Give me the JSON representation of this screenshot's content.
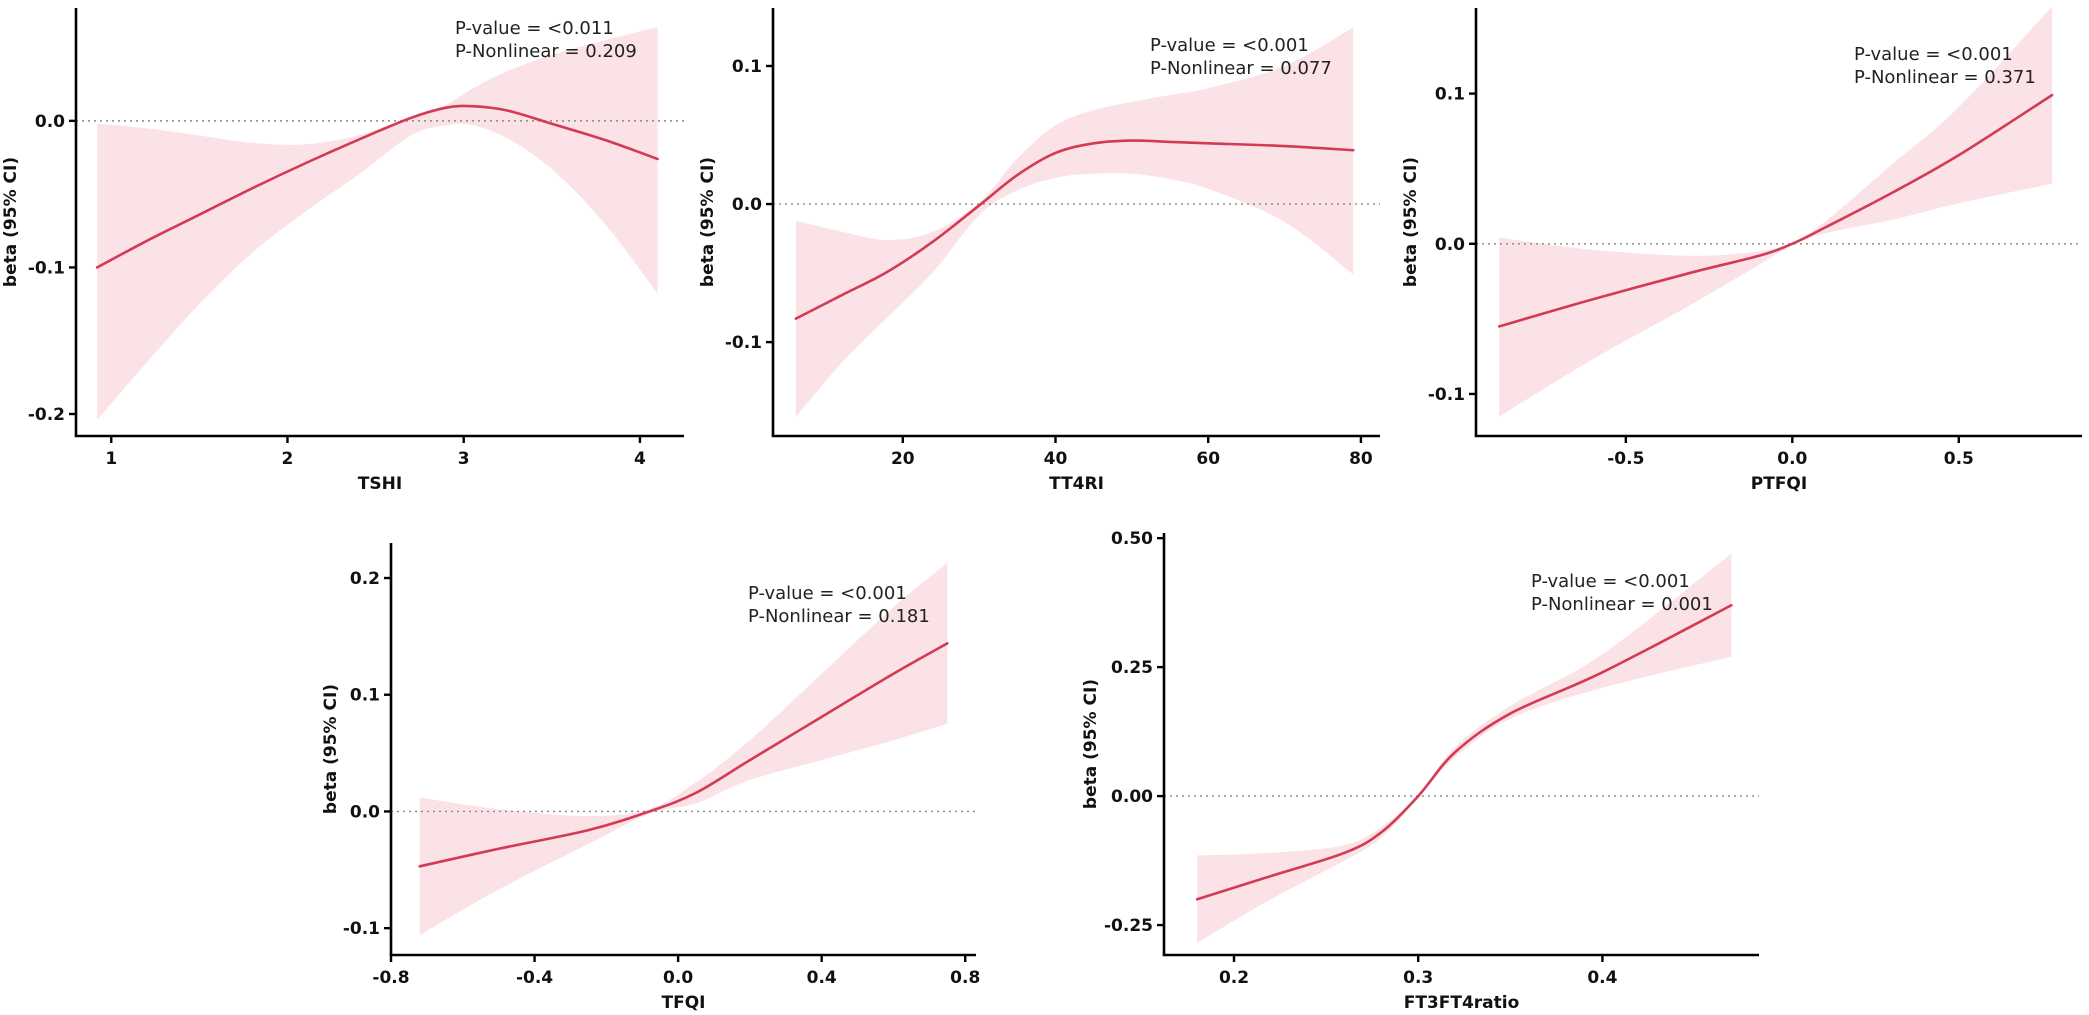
{
  "colors": {
    "line": "#d33a54",
    "band": "#fbe2e7",
    "axis": "#000000",
    "reference": "#888888"
  },
  "chart_data": [
    {
      "type": "line",
      "xlabel": "TSHI",
      "ylabel": "beta (95% CI)",
      "xlim": [
        0.8,
        4.25
      ],
      "ylim": [
        -0.215,
        0.077
      ],
      "xticks": [
        1,
        2,
        3,
        4
      ],
      "xtick_labels": [
        "1",
        "2",
        "3",
        "4"
      ],
      "yticks": [
        -0.2,
        -0.1,
        0.0
      ],
      "ytick_labels": [
        "-0.2",
        "-0.1",
        "0.0"
      ],
      "reference_y": 0,
      "annotations": [
        "P-value = <0.011",
        "P-Nonlinear = 0.209"
      ],
      "series": [
        {
          "name": "beta",
          "x": [
            0.92,
            1.2,
            1.5,
            1.8,
            2.1,
            2.4,
            2.7,
            2.9,
            3.05,
            3.25,
            3.5,
            3.8,
            4.1
          ],
          "y": [
            -0.1,
            -0.082,
            -0.064,
            -0.046,
            -0.029,
            -0.013,
            0.002,
            0.009,
            0.01,
            0.007,
            -0.002,
            -0.013,
            -0.026
          ],
          "lower": [
            -0.204,
            -0.165,
            -0.125,
            -0.09,
            -0.062,
            -0.037,
            -0.01,
            -0.003,
            -0.003,
            -0.012,
            -0.033,
            -0.07,
            -0.118
          ],
          "upper": [
            -0.002,
            -0.005,
            -0.01,
            -0.015,
            -0.016,
            -0.01,
            0.003,
            0.011,
            0.022,
            0.034,
            0.045,
            0.055,
            0.064
          ]
        }
      ]
    },
    {
      "type": "line",
      "xlabel": "TT4RI",
      "ylabel": "beta (95% CI)",
      "xlim": [
        3,
        82.5
      ],
      "ylim": [
        -0.168,
        0.142
      ],
      "xticks": [
        20,
        40,
        60,
        80
      ],
      "xtick_labels": [
        "20",
        "40",
        "60",
        "80"
      ],
      "yticks": [
        -0.1,
        0.0,
        0.1
      ],
      "ytick_labels": [
        "-0.1",
        "0.0",
        "0.1"
      ],
      "reference_y": 0,
      "annotations": [
        "P-value = <0.001",
        "P-Nonlinear = 0.077"
      ],
      "series": [
        {
          "name": "beta",
          "x": [
            6,
            12,
            18,
            24,
            30,
            35,
            40,
            45,
            50,
            55,
            60,
            70,
            79
          ],
          "y": [
            -0.083,
            -0.066,
            -0.049,
            -0.027,
            -0.001,
            0.021,
            0.037,
            0.044,
            0.046,
            0.045,
            0.044,
            0.042,
            0.039
          ],
          "lower": [
            -0.154,
            -0.115,
            -0.082,
            -0.049,
            -0.008,
            0.01,
            0.019,
            0.022,
            0.022,
            0.018,
            0.011,
            -0.013,
            -0.051
          ],
          "upper": [
            -0.012,
            -0.02,
            -0.026,
            -0.02,
            0.001,
            0.033,
            0.057,
            0.068,
            0.074,
            0.079,
            0.084,
            0.1,
            0.128
          ]
        }
      ]
    },
    {
      "type": "line",
      "xlabel": "PTFQI",
      "ylabel": "beta (95% CI)",
      "xlim": [
        -0.95,
        0.87
      ],
      "ylim": [
        -0.128,
        0.157
      ],
      "xticks": [
        -0.5,
        0.0,
        0.5
      ],
      "xtick_labels": [
        "-0.5",
        "0.0",
        "0.5"
      ],
      "yticks": [
        -0.1,
        0.0,
        0.1
      ],
      "ytick_labels": [
        "-0.1",
        "0.0",
        "0.1"
      ],
      "reference_y": 0,
      "annotations": [
        "P-value = <0.001",
        "P-Nonlinear = 0.371"
      ],
      "series": [
        {
          "name": "beta",
          "x": [
            -0.88,
            -0.6,
            -0.3,
            -0.1,
            0.0,
            0.1,
            0.3,
            0.5,
            0.78
          ],
          "y": [
            -0.055,
            -0.037,
            -0.019,
            -0.008,
            0.0,
            0.011,
            0.034,
            0.059,
            0.099
          ],
          "lower": [
            -0.115,
            -0.077,
            -0.04,
            -0.014,
            -0.001,
            0.007,
            0.016,
            0.027,
            0.04
          ],
          "upper": [
            0.004,
            -0.004,
            -0.008,
            -0.005,
            0.001,
            0.015,
            0.053,
            0.091,
            0.158
          ]
        }
      ]
    },
    {
      "type": "line",
      "xlabel": "TFQI",
      "ylabel": "beta (95% CI)",
      "xlim": [
        -0.8,
        0.83
      ],
      "ylim": [
        -0.123,
        0.23
      ],
      "xticks": [
        -0.8,
        -0.4,
        0.0,
        0.4,
        0.8
      ],
      "xtick_labels": [
        "-0.8",
        "-0.4",
        "0.0",
        "0.4",
        "0.8"
      ],
      "yticks": [
        -0.1,
        0.0,
        0.1,
        0.2
      ],
      "ytick_labels": [
        "-0.1",
        "0.0",
        "0.1",
        "0.2"
      ],
      "reference_y": 0,
      "annotations": [
        "P-value = <0.001",
        "P-Nonlinear = 0.181"
      ],
      "series": [
        {
          "name": "beta",
          "x": [
            -0.72,
            -0.5,
            -0.25,
            -0.08,
            0.05,
            0.2,
            0.4,
            0.6,
            0.75
          ],
          "y": [
            -0.047,
            -0.032,
            -0.016,
            0.0,
            0.016,
            0.044,
            0.081,
            0.118,
            0.144
          ],
          "lower": [
            -0.106,
            -0.067,
            -0.028,
            -0.002,
            0.007,
            0.027,
            0.044,
            0.061,
            0.075
          ],
          "upper": [
            0.012,
            0.002,
            -0.004,
            0.002,
            0.025,
            0.061,
            0.118,
            0.175,
            0.213
          ]
        }
      ]
    },
    {
      "type": "line",
      "xlabel": "FT3FT4ratio",
      "ylabel": "beta (95% CI)",
      "xlim": [
        0.162,
        0.485
      ],
      "ylim": [
        -0.308,
        0.51
      ],
      "xticks": [
        0.2,
        0.3,
        0.4
      ],
      "xtick_labels": [
        "0.2",
        "0.3",
        "0.4"
      ],
      "yticks": [
        -0.25,
        0.0,
        0.25,
        0.5
      ],
      "ytick_labels": [
        "-0.25",
        "0.00",
        "0.25",
        "0.50"
      ],
      "reference_y": 0,
      "annotations": [
        "P-value = <0.001",
        "P-Nonlinear = 0.001"
      ],
      "series": [
        {
          "name": "beta",
          "x": [
            0.18,
            0.22,
            0.26,
            0.28,
            0.3,
            0.32,
            0.35,
            0.4,
            0.47
          ],
          "y": [
            -0.2,
            -0.155,
            -0.11,
            -0.07,
            0.0,
            0.085,
            0.16,
            0.24,
            0.37
          ],
          "lower": [
            -0.285,
            -0.2,
            -0.125,
            -0.08,
            -0.003,
            0.075,
            0.15,
            0.21,
            0.27
          ],
          "upper": [
            -0.115,
            -0.11,
            -0.095,
            -0.06,
            0.003,
            0.095,
            0.175,
            0.275,
            0.47
          ]
        }
      ]
    }
  ]
}
